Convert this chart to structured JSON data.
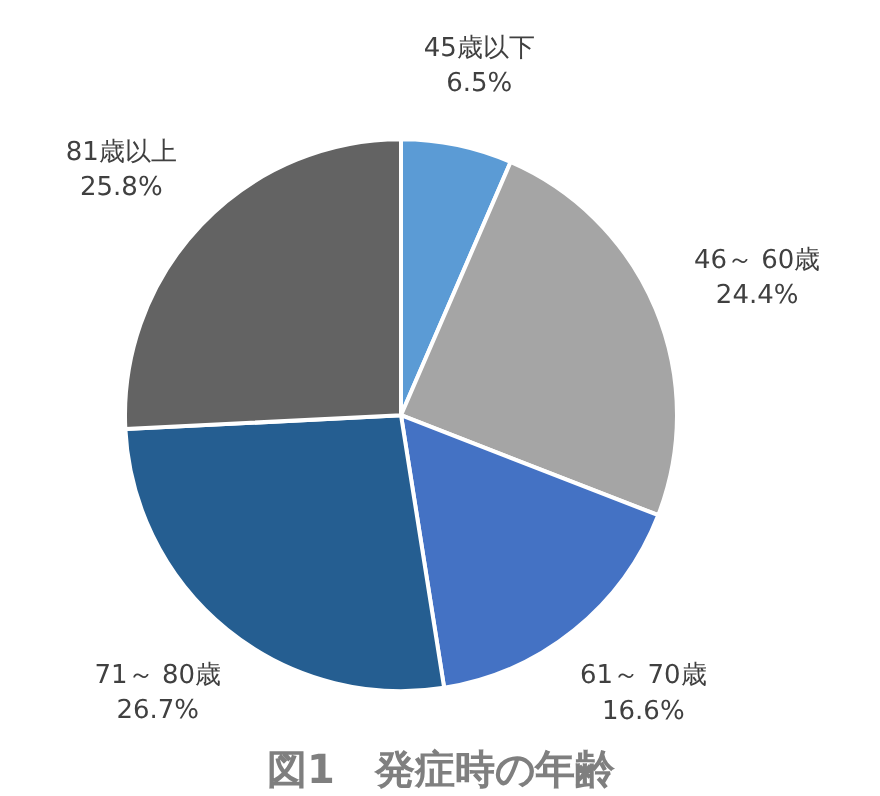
{
  "chart_data": {
    "type": "pie",
    "title": "図1　発症時の年齢",
    "categories": [
      "45歳以下",
      "46～ 60歳",
      "61～ 70歳",
      "71～ 80歳",
      "81歳以上"
    ],
    "values": [
      6.5,
      24.4,
      16.6,
      26.7,
      25.8
    ],
    "value_labels": [
      "6.5%",
      "24.4%",
      "16.6%",
      "26.7%",
      "25.8%"
    ],
    "colors": [
      "#5b9bd5",
      "#a5a5a5",
      "#4472c4",
      "#255e91",
      "#636363"
    ]
  }
}
